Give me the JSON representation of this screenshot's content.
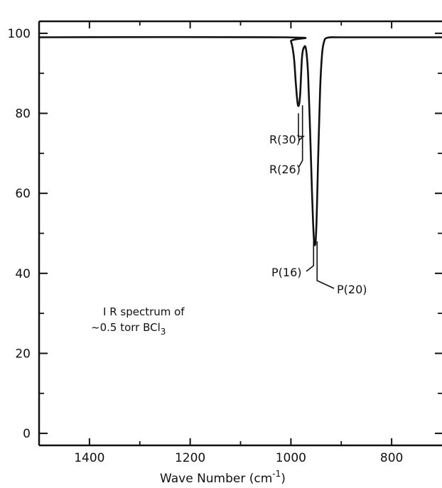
{
  "chart_data": {
    "type": "line",
    "title": "",
    "xlabel": "Wave Number (cm",
    "xlabel_sup": "-1",
    "xlabel_close": ")",
    "ylabel": "",
    "xlim": [
      1500,
      700
    ],
    "ylim": [
      -3,
      103
    ],
    "x_ticks": [
      1400,
      1200,
      1000,
      800
    ],
    "x_ticks_minor": [
      1300,
      1100,
      900
    ],
    "y_ticks": [
      0,
      20,
      40,
      60,
      80,
      100
    ],
    "y_ticks_minor": [
      10,
      30,
      50,
      70,
      90
    ],
    "grid": false,
    "series": [
      {
        "x": [
          1500,
          1010,
          1000,
          994,
          990,
          986,
          982,
          978,
          974,
          970,
          966,
          962,
          958,
          954,
          950,
          946,
          942,
          938,
          934,
          930,
          920,
          900,
          700
        ],
        "y": [
          99,
          99,
          98,
          94,
          87,
          82,
          84,
          94,
          96.5,
          96,
          90,
          76,
          60,
          48,
          50,
          68,
          86,
          95,
          98,
          98.8,
          99,
          99,
          99
        ]
      }
    ],
    "annotations": [
      {
        "text": "R(30)",
        "x": 985,
        "y": 80
      },
      {
        "text": "R(26)",
        "x": 977,
        "y": 82
      },
      {
        "text": "P(16)",
        "x": 955,
        "y": 48
      },
      {
        "text": "P(20)",
        "x": 948,
        "y": 48
      }
    ],
    "inset_text": {
      "line1": "I R spectrum of",
      "line2_prefix": "~0.5 torr BCl",
      "line2_sub": "3"
    }
  }
}
